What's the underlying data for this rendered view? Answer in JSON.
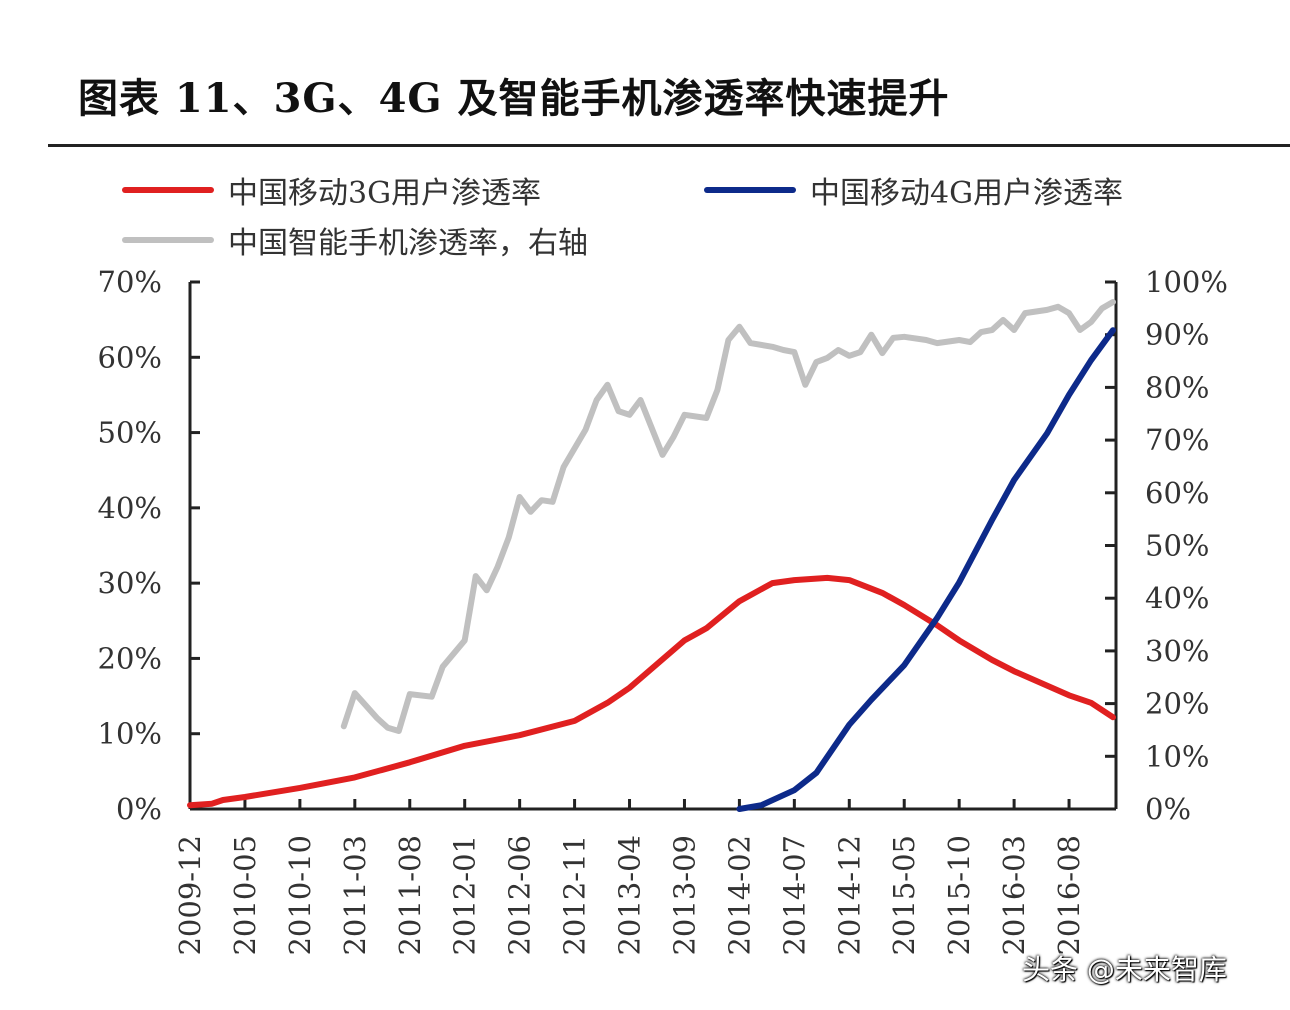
{
  "title": "图表 11、3G、4G 及智能手机渗透率快速提升",
  "watermark": "头条 @未来智库",
  "chart_data": {
    "type": "line",
    "title": "图表 11、3G、4G 及智能手机渗透率快速提升",
    "xlabel": "",
    "ylabel": "",
    "x_tick_labels": [
      "2009-12",
      "2010-05",
      "2010-10",
      "2011-03",
      "2011-08",
      "2012-01",
      "2012-06",
      "2012-11",
      "2013-04",
      "2013-09",
      "2014-02",
      "2014-07",
      "2014-12",
      "2015-05",
      "2015-10",
      "2016-03",
      "2016-08"
    ],
    "xlim": [
      "2009-12",
      "2016-12"
    ],
    "y_left": {
      "ylim": [
        0,
        70
      ],
      "tick_labels": [
        "0%",
        "10%",
        "20%",
        "30%",
        "40%",
        "50%",
        "60%",
        "70%"
      ]
    },
    "y_right": {
      "ylim": [
        0,
        100
      ],
      "tick_labels": [
        "0%",
        "10%",
        "20%",
        "30%",
        "40%",
        "50%",
        "60%",
        "70%",
        "80%",
        "90%",
        "100%"
      ]
    },
    "grid": false,
    "legend": "top",
    "series": [
      {
        "name": "中国移动3G用户渗透率",
        "axis": "left",
        "color": "#e02020",
        "points": [
          [
            "2009-12",
            0.5
          ],
          [
            "2010-02",
            0.7
          ],
          [
            "2010-03",
            1.2
          ],
          [
            "2010-05",
            1.6
          ],
          [
            "2010-10",
            2.8
          ],
          [
            "2011-03",
            4.2
          ],
          [
            "2011-08",
            6.2
          ],
          [
            "2012-01",
            8.4
          ],
          [
            "2012-06",
            9.8
          ],
          [
            "2012-11",
            11.7
          ],
          [
            "2013-02",
            14.1
          ],
          [
            "2013-04",
            16.1
          ],
          [
            "2013-09",
            22.4
          ],
          [
            "2013-11",
            24.0
          ],
          [
            "2014-02",
            27.6
          ],
          [
            "2014-05",
            30.0
          ],
          [
            "2014-07",
            30.4
          ],
          [
            "2014-10",
            30.7
          ],
          [
            "2014-12",
            30.4
          ],
          [
            "2015-03",
            28.7
          ],
          [
            "2015-05",
            27.1
          ],
          [
            "2015-08",
            24.4
          ],
          [
            "2015-10",
            22.4
          ],
          [
            "2016-01",
            19.8
          ],
          [
            "2016-03",
            18.3
          ],
          [
            "2016-08",
            15.1
          ],
          [
            "2016-10",
            14.1
          ],
          [
            "2016-12",
            12.2
          ]
        ]
      },
      {
        "name": "中国移动4G用户渗透率",
        "axis": "left",
        "color": "#0d2a8a",
        "points": [
          [
            "2014-02",
            0.0
          ],
          [
            "2014-04",
            0.5
          ],
          [
            "2014-07",
            2.5
          ],
          [
            "2014-09",
            4.8
          ],
          [
            "2014-12",
            11.2
          ],
          [
            "2015-02",
            14.5
          ],
          [
            "2015-05",
            19.1
          ],
          [
            "2015-08",
            25.4
          ],
          [
            "2015-10",
            30.1
          ],
          [
            "2016-01",
            38.4
          ],
          [
            "2016-03",
            43.7
          ],
          [
            "2016-06",
            49.9
          ],
          [
            "2016-08",
            55.0
          ],
          [
            "2016-10",
            59.6
          ],
          [
            "2016-12",
            63.6
          ]
        ]
      },
      {
        "name": "中国智能手机渗透率，右轴",
        "axis": "right",
        "color": "#c0c0c0",
        "points": [
          [
            "2011-02",
            15.7
          ],
          [
            "2011-03",
            22.0
          ],
          [
            "2011-05",
            17.3
          ],
          [
            "2011-06",
            15.4
          ],
          [
            "2011-07",
            14.8
          ],
          [
            "2011-08",
            21.8
          ],
          [
            "2011-10",
            21.3
          ],
          [
            "2011-11",
            27.0
          ],
          [
            "2012-01",
            32.0
          ],
          [
            "2012-02",
            44.2
          ],
          [
            "2012-03",
            41.5
          ],
          [
            "2012-04",
            46.0
          ],
          [
            "2012-05",
            51.5
          ],
          [
            "2012-06",
            59.2
          ],
          [
            "2012-07",
            56.4
          ],
          [
            "2012-08",
            58.6
          ],
          [
            "2012-09",
            58.3
          ],
          [
            "2012-10",
            64.9
          ],
          [
            "2012-12",
            72.0
          ],
          [
            "2013-01",
            77.6
          ],
          [
            "2013-02",
            80.5
          ],
          [
            "2013-03",
            75.5
          ],
          [
            "2013-04",
            74.8
          ],
          [
            "2013-05",
            77.6
          ],
          [
            "2013-07",
            67.2
          ],
          [
            "2013-08",
            70.6
          ],
          [
            "2013-09",
            74.8
          ],
          [
            "2013-11",
            74.2
          ],
          [
            "2013-12",
            79.5
          ],
          [
            "2014-01",
            89.0
          ],
          [
            "2014-02",
            91.5
          ],
          [
            "2014-03",
            88.4
          ],
          [
            "2014-05",
            87.7
          ],
          [
            "2014-06",
            87.1
          ],
          [
            "2014-07",
            86.7
          ],
          [
            "2014-08",
            80.5
          ],
          [
            "2014-09",
            84.8
          ],
          [
            "2014-10",
            85.6
          ],
          [
            "2014-11",
            87.1
          ],
          [
            "2014-12",
            86.0
          ],
          [
            "2015-01",
            86.7
          ],
          [
            "2015-02",
            90.0
          ],
          [
            "2015-03",
            86.5
          ],
          [
            "2015-04",
            89.4
          ],
          [
            "2015-05",
            89.6
          ],
          [
            "2015-07",
            89.0
          ],
          [
            "2015-08",
            88.4
          ],
          [
            "2015-10",
            89.0
          ],
          [
            "2015-11",
            88.6
          ],
          [
            "2015-12",
            90.5
          ],
          [
            "2016-01",
            90.9
          ],
          [
            "2016-02",
            92.8
          ],
          [
            "2016-03",
            90.9
          ],
          [
            "2016-04",
            94.1
          ],
          [
            "2016-06",
            94.7
          ],
          [
            "2016-07",
            95.3
          ],
          [
            "2016-08",
            94.1
          ],
          [
            "2016-09",
            90.9
          ],
          [
            "2016-10",
            92.4
          ],
          [
            "2016-11",
            95.0
          ],
          [
            "2016-12",
            96.2
          ]
        ]
      }
    ]
  }
}
